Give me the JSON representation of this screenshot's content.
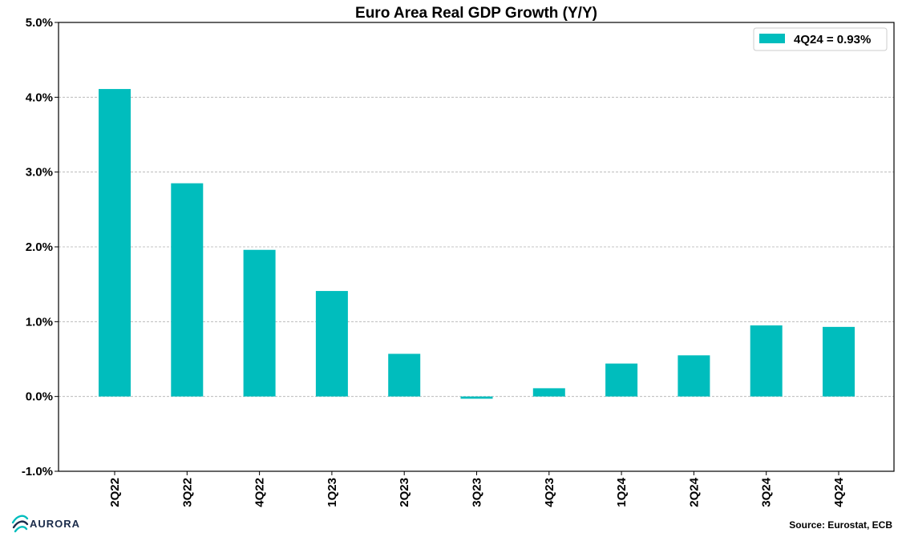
{
  "chart_data": {
    "type": "bar",
    "title": "Euro Area Real GDP Growth (Y/Y)",
    "categories": [
      "2Q22",
      "3Q22",
      "4Q22",
      "1Q23",
      "2Q23",
      "3Q23",
      "4Q23",
      "1Q24",
      "2Q24",
      "3Q24",
      "4Q24"
    ],
    "values": [
      4.11,
      2.85,
      1.96,
      1.41,
      0.57,
      -0.03,
      0.11,
      0.44,
      0.55,
      0.95,
      0.93
    ],
    "ylim": [
      -1.0,
      5.0
    ],
    "yticks": [
      -1.0,
      0.0,
      1.0,
      2.0,
      3.0,
      4.0,
      5.0
    ],
    "ytick_labels": [
      "-1.0%",
      "0.0%",
      "1.0%",
      "2.0%",
      "3.0%",
      "4.0%",
      "5.0%"
    ],
    "xlabel": "",
    "ylabel": "",
    "grid": "horizontal dashed",
    "legend_position": "top-right",
    "series": [
      {
        "name": "4Q24 = 0.93%",
        "color": "#00BDBD"
      }
    ]
  },
  "legend": {
    "label": "4Q24 = 0.93%"
  },
  "footer": {
    "brand": "AURORA",
    "source": "Source: Eurostat, ECB"
  },
  "colors": {
    "bar": "#00BDBD",
    "grid": "#b0b0b0",
    "axis": "#000000",
    "brand": "#1a2b4a",
    "brand_mark": "#00BDBD"
  }
}
